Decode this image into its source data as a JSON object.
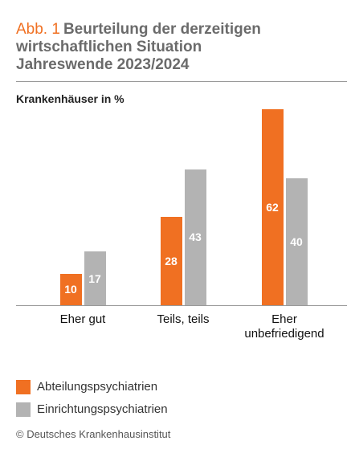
{
  "figure_label": "Abb. 1",
  "chart_data": {
    "type": "bar",
    "title": "Beurteilung der derzeitigen wirtschaftlichen Situation Jahreswende 2023/2024",
    "subtitle": "Krankenhäuser in %",
    "categories": [
      "Eher gut",
      "Teils, teils",
      "Eher unbefriedigend"
    ],
    "series": [
      {
        "name": "Abteilungspsychiatrien",
        "color": "#f07022",
        "values": [
          10,
          28,
          62
        ]
      },
      {
        "name": "Einrichtungspsychiatrien",
        "color": "#b3b3b3",
        "values": [
          17,
          43,
          40
        ]
      }
    ]
  },
  "source": "© Deutsches Krankenhausinstitut"
}
